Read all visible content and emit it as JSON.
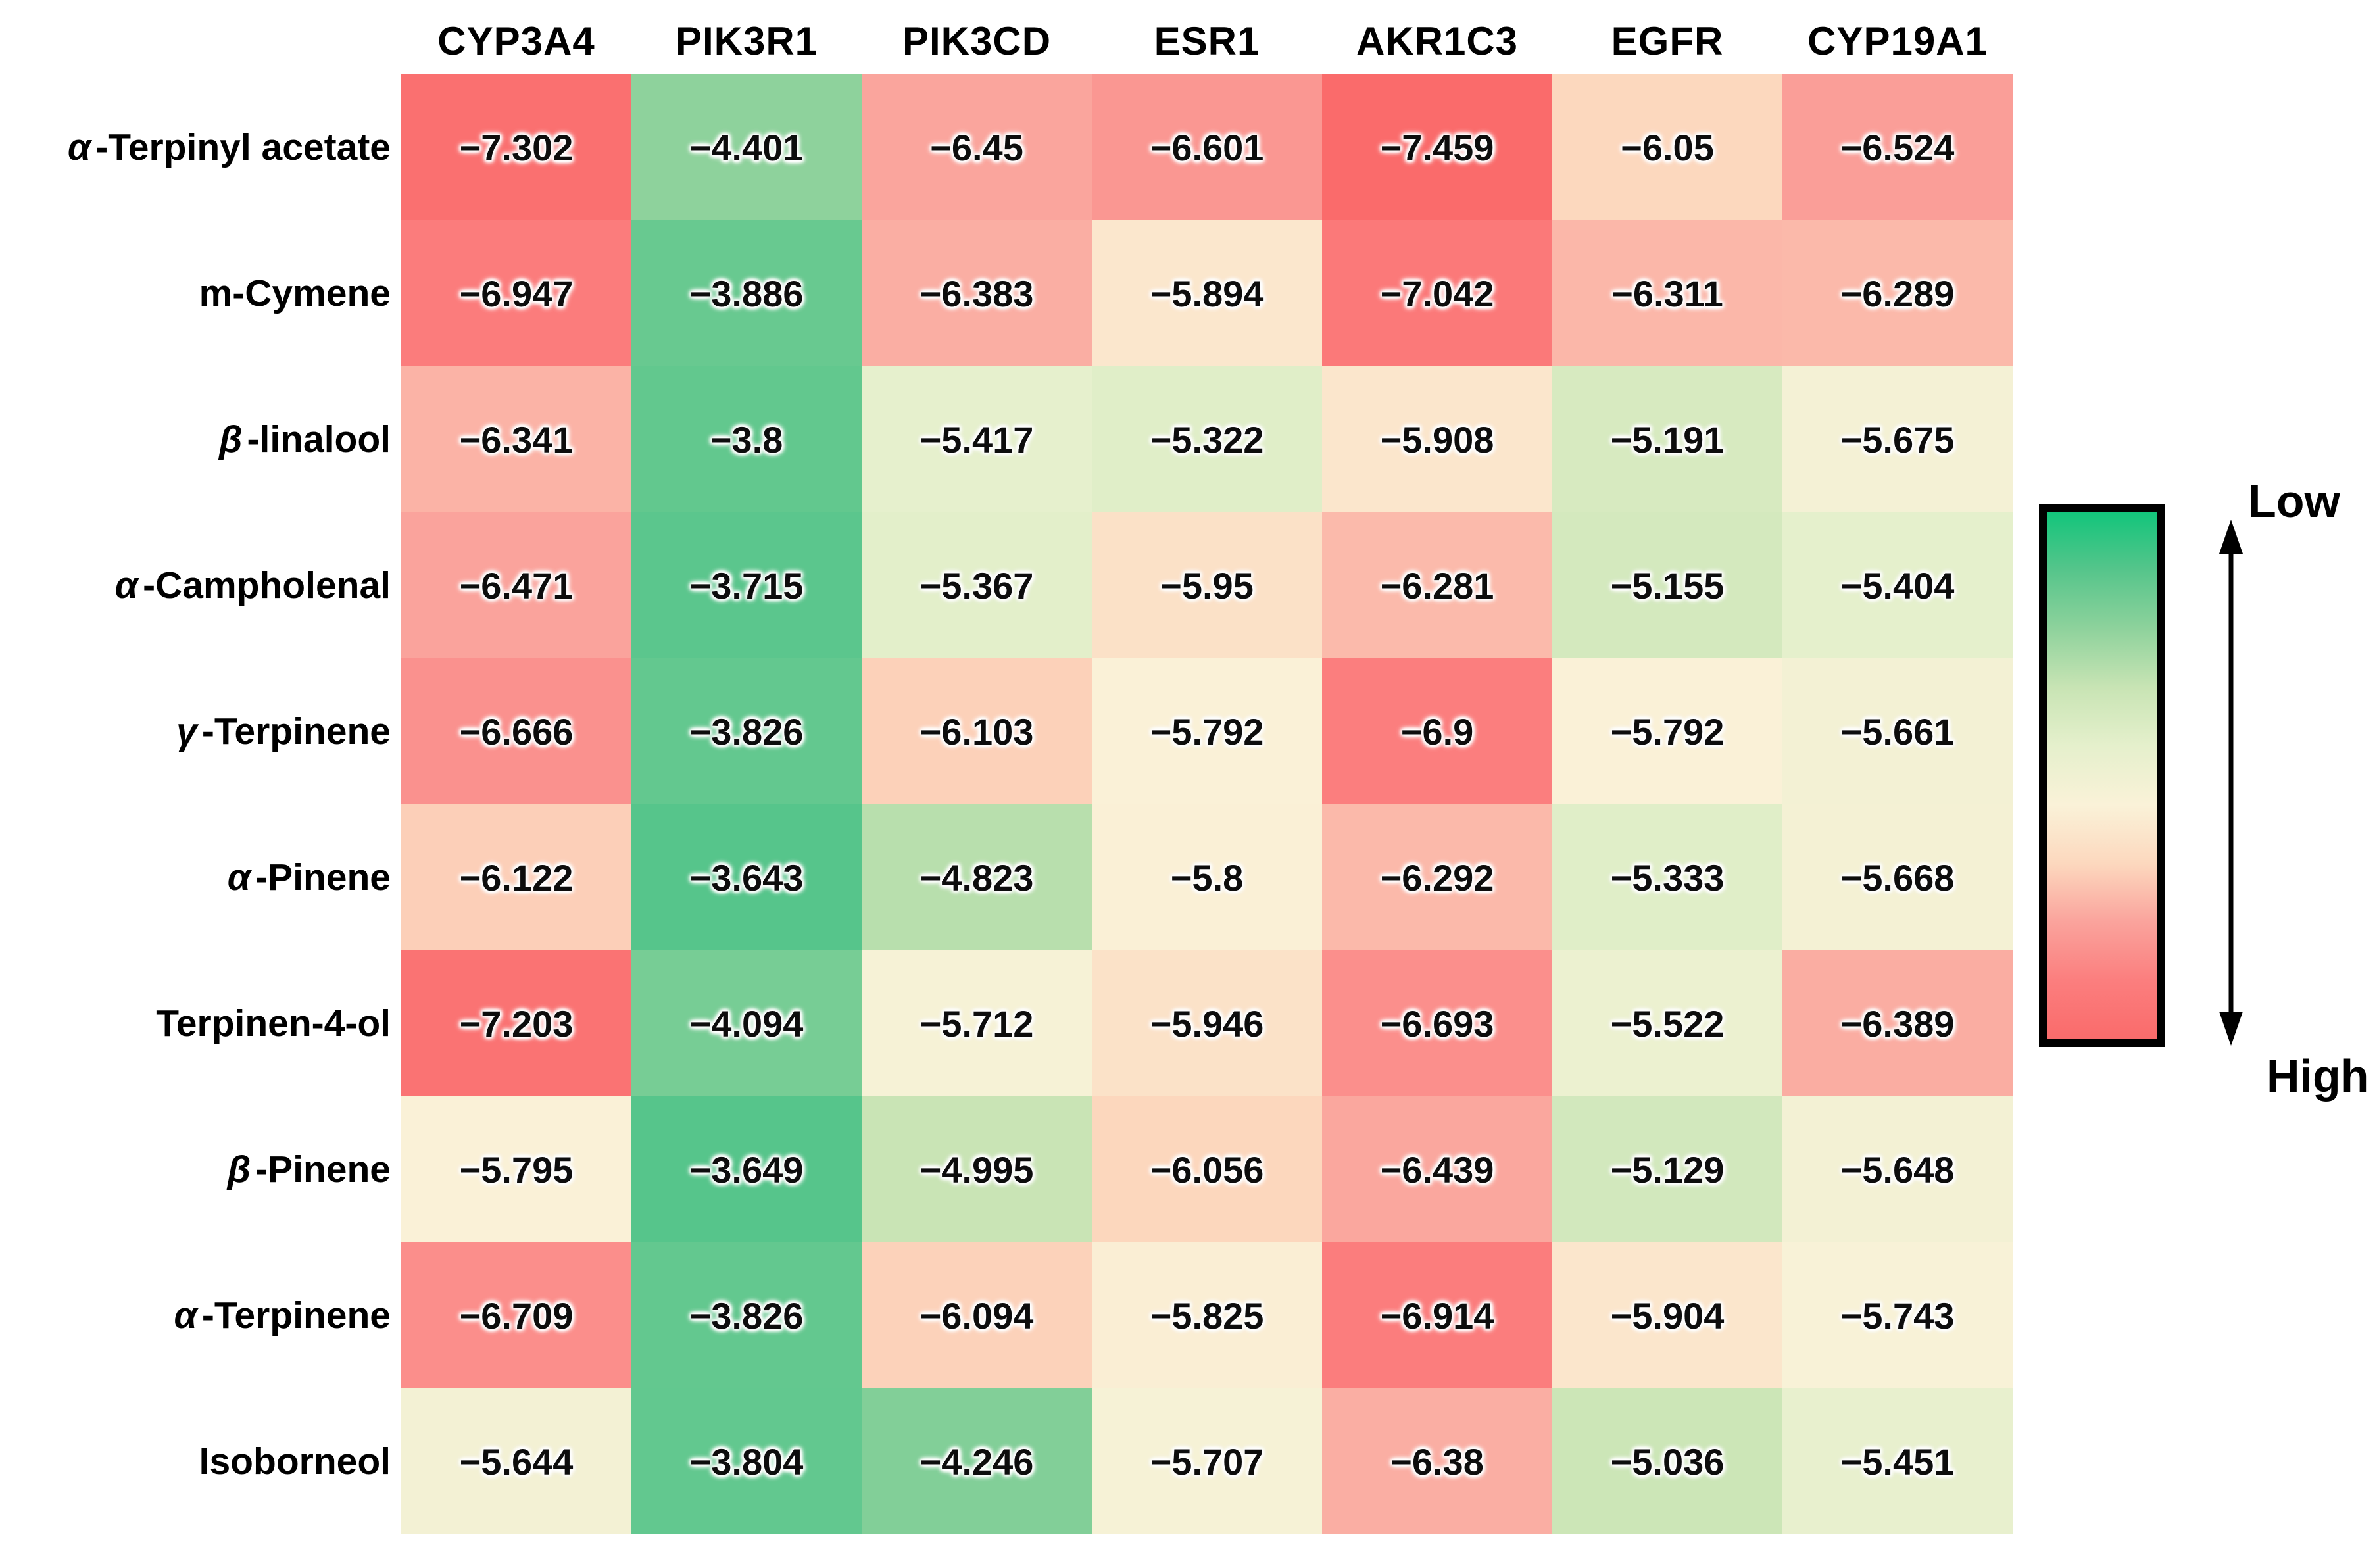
{
  "chart_data": {
    "type": "heatmap",
    "title": "",
    "columns": [
      "CYP3A4",
      "PIK3R1",
      "PIK3CD",
      "ESR1",
      "AKR1C3",
      "EGFR",
      "CYP19A1"
    ],
    "rows": [
      "α-Terpinyl acetate",
      "m-Cymene",
      "β-linalool",
      "α-Campholenal",
      "γ-Terpinene",
      "α-Pinene",
      "Terpinen-4-ol",
      "β-Pinene",
      "α-Terpinene",
      "Isoborneol"
    ],
    "values": [
      [
        -7.302,
        -4.401,
        -6.45,
        -6.601,
        -7.459,
        -6.05,
        -6.524
      ],
      [
        -6.947,
        -3.886,
        -6.383,
        -5.894,
        -7.042,
        -6.311,
        -6.289
      ],
      [
        -6.341,
        -3.8,
        -5.417,
        -5.322,
        -5.908,
        -5.191,
        -5.675
      ],
      [
        -6.471,
        -3.715,
        -5.367,
        -5.95,
        -6.281,
        -5.155,
        -5.404
      ],
      [
        -6.666,
        -3.826,
        -6.103,
        -5.792,
        -6.9,
        -5.792,
        -5.661
      ],
      [
        -6.122,
        -3.643,
        -4.823,
        -5.8,
        -6.292,
        -5.333,
        -5.668
      ],
      [
        -7.203,
        -4.094,
        -5.712,
        -5.946,
        -6.693,
        -5.522,
        -6.389
      ],
      [
        -5.795,
        -3.649,
        -4.995,
        -6.056,
        -6.439,
        -5.129,
        -5.648
      ],
      [
        -6.709,
        -3.826,
        -6.094,
        -5.825,
        -6.914,
        -5.904,
        -5.743
      ],
      [
        -5.644,
        -3.804,
        -4.246,
        -5.707,
        -6.38,
        -5.036,
        -5.451
      ]
    ],
    "value_range": [
      -7.459,
      -3.643
    ],
    "colorbar": {
      "top_label": "Low",
      "bottom_label": "High",
      "gradient_colors": [
        "#12c57b",
        "#56c58b",
        "#8ed29c",
        "#c8e4b4",
        "#e5f0cc",
        "#faf2d8",
        "#fcd8be",
        "#faa39c",
        "#fb7e7e",
        "#fa6b6b"
      ]
    },
    "colormap_stops": [
      [
        0.0,
        [
          250,
          107,
          107
        ]
      ],
      [
        0.15,
        [
          251,
          126,
          126
        ]
      ],
      [
        0.26,
        [
          250,
          163,
          156
        ]
      ],
      [
        0.37,
        [
          252,
          216,
          190
        ]
      ],
      [
        0.44,
        [
          250,
          242,
          216
        ]
      ],
      [
        0.54,
        [
          229,
          240,
          204
        ]
      ],
      [
        0.65,
        [
          200,
          228,
          180
        ]
      ],
      [
        0.8,
        [
          142,
          210,
          156
        ]
      ],
      [
        1.0,
        [
          86,
          197,
          139
        ]
      ]
    ],
    "layout_hints": {
      "legend_position": "right",
      "grid": "off",
      "cell_text_halo": "white"
    }
  }
}
